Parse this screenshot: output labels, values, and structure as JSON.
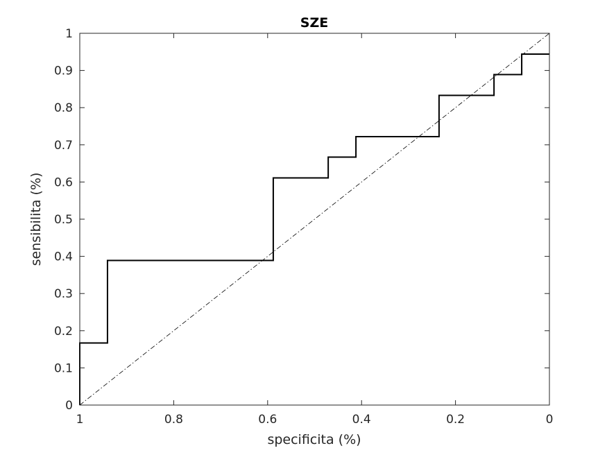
{
  "chart_data": {
    "type": "line",
    "title": "SZE",
    "xlabel": "specificita (%)",
    "ylabel": "sensibilita (%)",
    "xlim": [
      0,
      1
    ],
    "ylim": [
      0,
      1
    ],
    "x_reversed": true,
    "grid": false,
    "legend": "none",
    "x_ticks": [
      1,
      0.8,
      0.6,
      0.4,
      0.2,
      0
    ],
    "x_tick_labels": [
      "1",
      "0.8",
      "0.6",
      "0.4",
      "0.2",
      "0"
    ],
    "y_ticks": [
      0,
      0.1,
      0.2,
      0.3,
      0.4,
      0.5,
      0.6,
      0.7,
      0.8,
      0.9,
      1
    ],
    "y_tick_labels": [
      "0",
      "0.1",
      "0.2",
      "0.3",
      "0.4",
      "0.5",
      "0.6",
      "0.7",
      "0.8",
      "0.9",
      "1"
    ],
    "series": [
      {
        "style": "solid",
        "color": "#000000",
        "x": [
          1,
          1,
          0.941,
          0.941,
          0.588,
          0.588,
          0.471,
          0.471,
          0.412,
          0.412,
          0.235,
          0.235,
          0.118,
          0.118,
          0.059,
          0.059,
          0
        ],
        "y": [
          0,
          0.167,
          0.167,
          0.389,
          0.389,
          0.611,
          0.611,
          0.667,
          0.667,
          0.722,
          0.722,
          0.833,
          0.833,
          0.889,
          0.889,
          0.944,
          0.944
        ]
      },
      {
        "style": "dash-dot",
        "color": "#000000",
        "x": [
          1,
          0
        ],
        "y": [
          0,
          1
        ]
      }
    ]
  }
}
